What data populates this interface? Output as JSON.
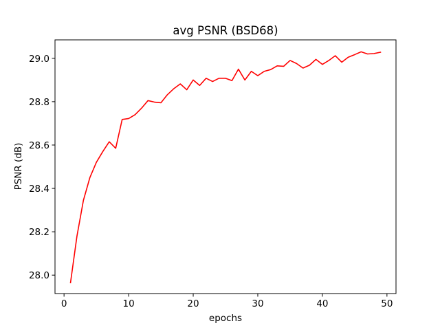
{
  "chart_data": {
    "type": "line",
    "title": "avg PSNR (BSD68)",
    "xlabel": "epochs",
    "ylabel": "PSNR (dB)",
    "xlim": [
      -1.4,
      51.4
    ],
    "ylim": [
      27.915,
      29.085
    ],
    "xticks": [
      0,
      10,
      20,
      30,
      40,
      50
    ],
    "yticks": [
      28.0,
      28.2,
      28.4,
      28.6,
      28.8,
      29.0
    ],
    "ytick_format": "1dp",
    "grid": false,
    "series": [
      {
        "color": "#ff0000",
        "x": [
          1,
          2,
          3,
          4,
          5,
          6,
          7,
          8,
          9,
          10,
          11,
          12,
          13,
          14,
          15,
          16,
          17,
          18,
          19,
          20,
          21,
          22,
          23,
          24,
          25,
          26,
          27,
          28,
          29,
          30,
          31,
          32,
          33,
          34,
          35,
          36,
          37,
          38,
          39,
          40,
          41,
          42,
          43,
          44,
          45,
          46,
          47,
          48,
          49
        ],
        "y": [
          27.965,
          28.18,
          28.345,
          28.45,
          28.52,
          28.57,
          28.615,
          28.585,
          28.718,
          28.722,
          28.74,
          28.77,
          28.805,
          28.798,
          28.795,
          28.832,
          28.86,
          28.882,
          28.855,
          28.9,
          28.875,
          28.908,
          28.893,
          28.908,
          28.908,
          28.897,
          28.95,
          28.9,
          28.94,
          28.92,
          28.94,
          28.948,
          28.965,
          28.963,
          28.99,
          28.976,
          28.955,
          28.968,
          28.995,
          28.972,
          28.99,
          29.012,
          28.982,
          29.005,
          29.017,
          29.03,
          29.02,
          29.022,
          29.028
        ]
      }
    ]
  }
}
